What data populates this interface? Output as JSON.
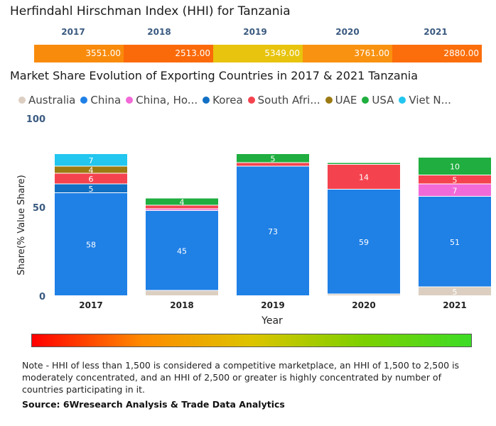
{
  "hhi": {
    "title": "Herfindahl Hirschman Index (HHI) for Tanzania",
    "years": [
      "2017",
      "2018",
      "2019",
      "2020",
      "2021"
    ],
    "labels": [
      "3551.00",
      "2513.00",
      "5349.00",
      "3761.00",
      "2880.00"
    ],
    "values": [
      3551,
      2513,
      5349,
      3761,
      2880
    ],
    "colors": [
      "#f98b0c",
      "#fb6a0a",
      "#e8c40e",
      "#f99210",
      "#fb6e0b"
    ]
  },
  "market_share": {
    "title": "Market Share Evolution of Exporting Countries in 2017 & 2021 Tanzania"
  },
  "chart_data": {
    "type": "bar",
    "stacked": true,
    "categories": [
      "2017",
      "2018",
      "2019",
      "2020",
      "2021"
    ],
    "xlabel": "Year",
    "ylabel": "Share(% Value Share)",
    "ylim": [
      0,
      100
    ],
    "yticks": [
      "0",
      "50",
      "100"
    ],
    "legend_position": "top",
    "series": [
      {
        "name": "Australia",
        "legend_label": "Australia",
        "color": "#dccfc1",
        "values": [
          0,
          3,
          0,
          1,
          5
        ],
        "labels": [
          "",
          "",
          "",
          "",
          "5"
        ]
      },
      {
        "name": "China",
        "legend_label": "China",
        "color": "#1f80e6",
        "values": [
          58,
          45,
          73,
          59,
          51
        ],
        "labels": [
          "58",
          "45",
          "73",
          "59",
          "51"
        ]
      },
      {
        "name": "China, Ho...",
        "legend_label": "China, Ho...",
        "color": "#f26ad8",
        "values": [
          0,
          1,
          0,
          0,
          7
        ],
        "labels": [
          "",
          "",
          "",
          "",
          "7"
        ]
      },
      {
        "name": "Korea",
        "legend_label": "Korea",
        "color": "#1170c4",
        "values": [
          5,
          0,
          0,
          0,
          0
        ],
        "labels": [
          "5",
          "",
          "",
          "",
          ""
        ]
      },
      {
        "name": "South Afri...",
        "legend_label": "South Afri...",
        "color": "#f4434f",
        "values": [
          6,
          2,
          2,
          14,
          5
        ],
        "labels": [
          "6",
          "",
          "",
          "14",
          "5"
        ]
      },
      {
        "name": "UAE",
        "legend_label": "UAE",
        "color": "#9c7a12",
        "values": [
          4,
          0,
          0,
          0,
          0
        ],
        "labels": [
          "4",
          "",
          "",
          "",
          ""
        ]
      },
      {
        "name": "USA",
        "legend_label": "USA",
        "color": "#1fae3f",
        "values": [
          0,
          4,
          5,
          1,
          10
        ],
        "labels": [
          "",
          "4",
          "5",
          "",
          "10"
        ]
      },
      {
        "name": "Viet N...",
        "legend_label": "Viet N...",
        "color": "#22c6ef",
        "values": [
          7,
          0,
          0,
          0,
          0
        ],
        "labels": [
          "7",
          "",
          "",
          "",
          ""
        ]
      }
    ]
  },
  "scale": {
    "colors": [
      "#ff0000",
      "#ff8a00",
      "#ddc400",
      "#7ed000",
      "#3ddc26"
    ]
  },
  "note": {
    "text": "Note - HHI of less than 1,500 is considered a competitive marketplace, an HHI of 1,500 to 2,500 is moderately concentrated, and an HHI of 2,500 or greater is highly concentrated by number of countries participating in it.",
    "source": "Source: 6Wresearch Analysis & Trade Data Analytics"
  }
}
